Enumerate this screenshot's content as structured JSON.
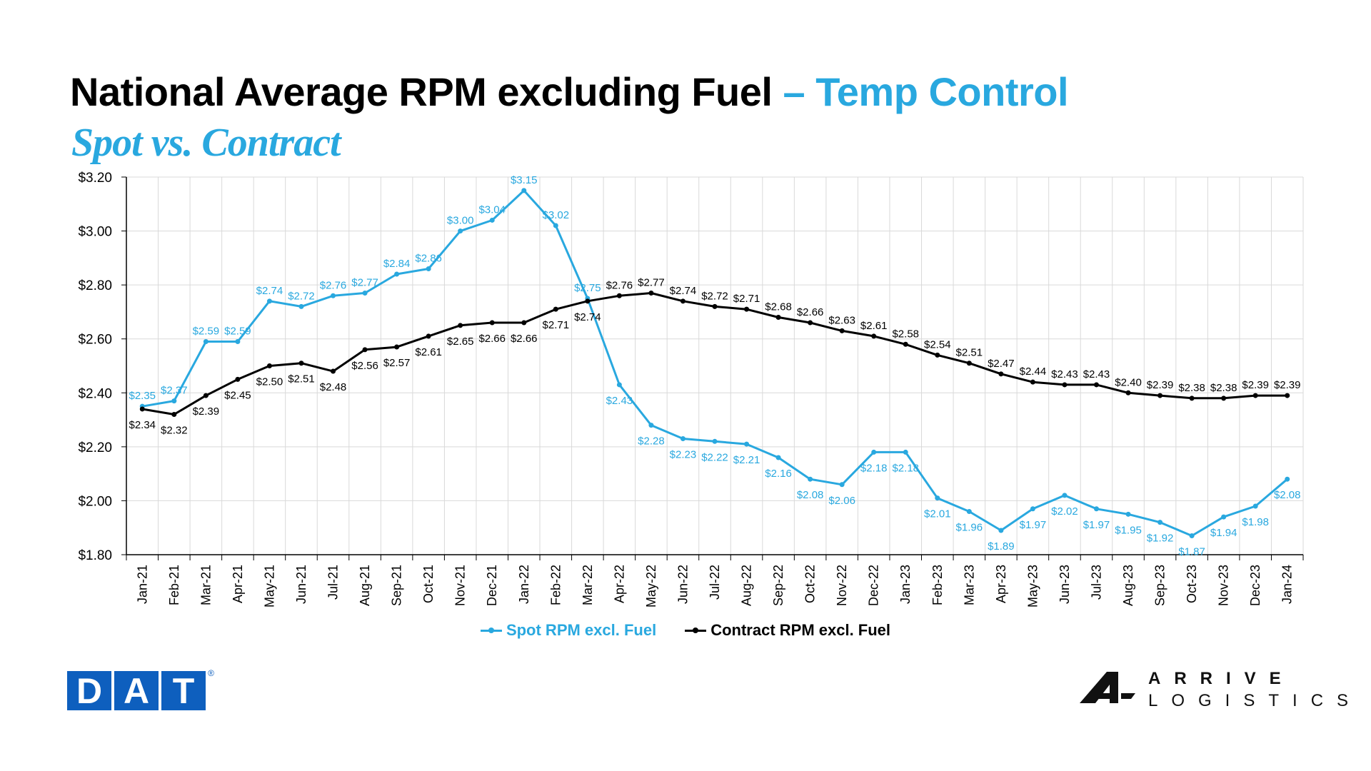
{
  "title": {
    "main": "National Average RPM excluding Fuel",
    "accent": "– Temp Control"
  },
  "subtitle": "Spot vs. Contract",
  "colors": {
    "spot": "#29a8df",
    "contract": "#000000",
    "brand_blue": "#0e5fbe"
  },
  "logos": {
    "dat": {
      "letters": [
        "D",
        "A",
        "T"
      ],
      "reg": "®"
    },
    "arrive": {
      "line1": "ARRIVE",
      "line2": "LOGISTICS",
      "mark": "arrive-logo-icon"
    }
  },
  "chart_data": {
    "type": "line",
    "categories": [
      "Jan-21",
      "Feb-21",
      "Mar-21",
      "Apr-21",
      "May-21",
      "Jun-21",
      "Jul-21",
      "Aug-21",
      "Sep-21",
      "Oct-21",
      "Nov-21",
      "Dec-21",
      "Jan-22",
      "Feb-22",
      "Mar-22",
      "Apr-22",
      "May-22",
      "Jun-22",
      "Jul-22",
      "Aug-22",
      "Sep-22",
      "Oct-22",
      "Nov-22",
      "Dec-22",
      "Jan-23",
      "Feb-23",
      "Mar-23",
      "Apr-23",
      "May-23",
      "Jun-23",
      "Jul-23",
      "Aug-23",
      "Sep-23",
      "Oct-23",
      "Nov-23",
      "Dec-23",
      "Jan-24"
    ],
    "ylim": [
      1.8,
      3.2
    ],
    "yticks": [
      "$1.80",
      "$2.00",
      "$2.20",
      "$2.40",
      "$2.60",
      "$2.80",
      "$3.00",
      "$3.20"
    ],
    "ytick_values": [
      1.8,
      2.0,
      2.2,
      2.4,
      2.6,
      2.8,
      3.0,
      3.2
    ],
    "grid": true,
    "legend_position": "bottom-center",
    "series": [
      {
        "name": "Spot RPM excl. Fuel",
        "color": "#29a8df",
        "values": [
          2.35,
          2.37,
          2.59,
          2.59,
          2.74,
          2.72,
          2.76,
          2.77,
          2.84,
          2.86,
          3.0,
          3.04,
          3.15,
          3.02,
          2.75,
          2.43,
          2.28,
          2.23,
          2.22,
          2.21,
          2.16,
          2.08,
          2.06,
          2.18,
          2.18,
          2.01,
          1.96,
          1.89,
          1.97,
          2.02,
          1.97,
          1.95,
          1.92,
          1.87,
          1.94,
          1.98,
          2.08
        ],
        "labels": [
          "$2.35",
          "$2.37",
          "$2.59",
          "$2.59",
          "$2.74",
          "$2.72",
          "$2.76",
          "$2.77",
          "$2.84",
          "$2.86",
          "$3.00",
          "$3.04",
          "$3.15",
          "$3.02",
          "$2.75",
          "$2.43",
          "$2.28",
          "$2.23",
          "$2.22",
          "$2.21",
          "$2.16",
          "$2.08",
          "$2.06",
          "$2.18",
          "$2.18",
          "$2.01",
          "$1.96",
          "$1.89",
          "$1.97",
          "$2.02",
          "$1.97",
          "$1.95",
          "$1.92",
          "$1.87",
          "$1.94",
          "$1.98",
          "$2.08"
        ]
      },
      {
        "name": "Contract RPM excl. Fuel",
        "color": "#000000",
        "values": [
          2.34,
          2.32,
          2.39,
          2.45,
          2.5,
          2.51,
          2.48,
          2.56,
          2.57,
          2.61,
          2.65,
          2.66,
          2.66,
          2.71,
          2.74,
          2.76,
          2.77,
          2.74,
          2.72,
          2.71,
          2.68,
          2.66,
          2.63,
          2.61,
          2.58,
          2.54,
          2.51,
          2.47,
          2.44,
          2.43,
          2.43,
          2.4,
          2.39,
          2.38,
          2.38,
          2.39,
          2.39
        ],
        "labels": [
          "$2.34",
          "$2.32",
          "$2.39",
          "$2.45",
          "$2.50",
          "$2.51",
          "$2.48",
          "$2.56",
          "$2.57",
          "$2.61",
          "$2.65",
          "$2.66",
          "$2.66",
          "$2.71",
          "$2.74",
          "$2.76",
          "$2.77",
          "$2.74",
          "$2.72",
          "$2.71",
          "$2.68",
          "$2.66",
          "$2.63",
          "$2.61",
          "$2.58",
          "$2.54",
          "$2.51",
          "$2.47",
          "$2.44",
          "$2.43",
          "$2.43",
          "$2.40",
          "$2.39",
          "$2.38",
          "$2.38",
          "$2.39",
          "$2.39"
        ]
      }
    ]
  }
}
